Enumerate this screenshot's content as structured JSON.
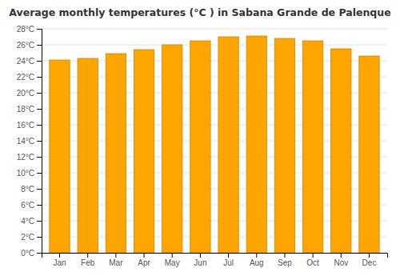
{
  "chart_data": {
    "type": "bar",
    "title": "Average monthly temperatures (°C ) in Sabana Grande de Palenque",
    "categories": [
      "Jan",
      "Feb",
      "Mar",
      "Apr",
      "May",
      "Jun",
      "Jul",
      "Aug",
      "Sep",
      "Oct",
      "Nov",
      "Dec"
    ],
    "values": [
      24.1,
      24.3,
      24.9,
      25.4,
      26.0,
      26.5,
      27.0,
      27.1,
      26.8,
      26.5,
      25.5,
      24.6
    ],
    "color": "#FFA500",
    "ylim": [
      0,
      28
    ],
    "yticks": [
      {
        "value": 0,
        "label": "0°C"
      },
      {
        "value": 2,
        "label": "2°C"
      },
      {
        "value": 4,
        "label": "4°C"
      },
      {
        "value": 6,
        "label": "6°C"
      },
      {
        "value": 8,
        "label": "8°C"
      },
      {
        "value": 10,
        "label": "10°C"
      },
      {
        "value": 12,
        "label": "12°C"
      },
      {
        "value": 14,
        "label": "14°C"
      },
      {
        "value": 16,
        "label": "16°C"
      },
      {
        "value": 18,
        "label": "18°C"
      },
      {
        "value": 20,
        "label": "20°C"
      },
      {
        "value": 22,
        "label": "22°C"
      },
      {
        "value": 24,
        "label": "24°C"
      },
      {
        "value": 26,
        "label": "26°C"
      },
      {
        "value": 28,
        "label": "28°C"
      }
    ],
    "grid": true
  }
}
